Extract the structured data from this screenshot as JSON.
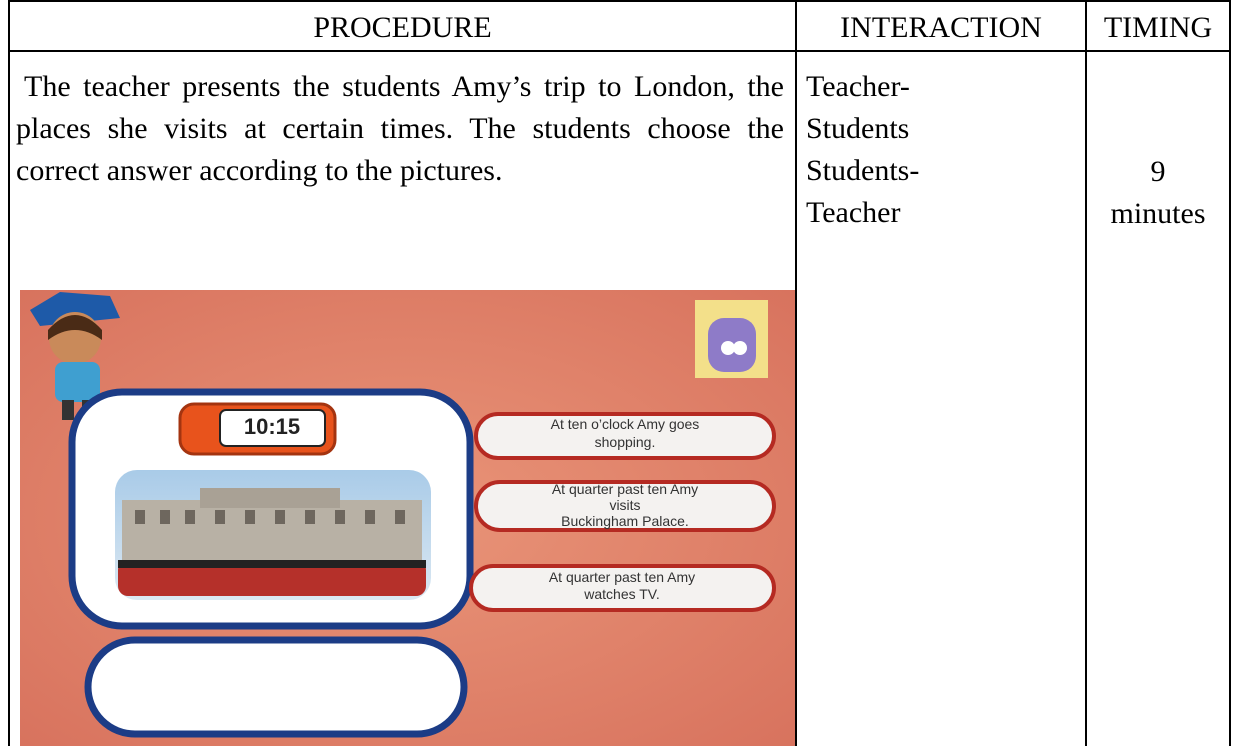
{
  "table": {
    "header": [
      "PROCEDURE",
      "INTERACTION",
      "TIMING"
    ],
    "procedure": "The teacher presents the students Amy’s trip to London, the places she visits at certain times. The students choose the correct answer according to the pictures.",
    "interaction": [
      "Teacher-",
      "Students",
      "Students-",
      "Teacher"
    ],
    "timing": [
      "9",
      "minutes"
    ]
  },
  "screenshot": {
    "clock": "10:15",
    "options": [
      [
        "At ten o’clock Amy goes",
        "shopping."
      ],
      [
        "At quarter past ten Amy",
        "visits",
        "Buckingham Palace."
      ],
      [
        "At quarter past ten Amy",
        "watches TV."
      ]
    ]
  }
}
